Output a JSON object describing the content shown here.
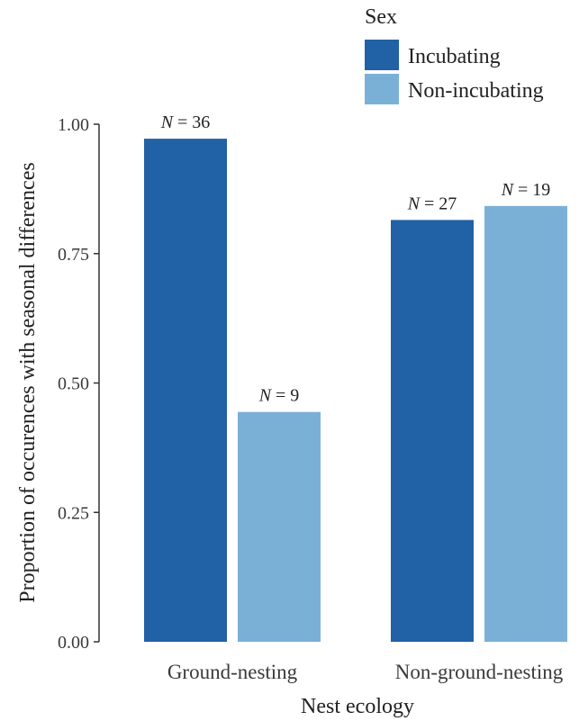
{
  "chart_data": {
    "type": "bar",
    "xlabel": "Nest ecology",
    "ylabel": "Proportion of occurences with seasonal differences",
    "ylim": [
      0,
      1
    ],
    "yticks": [
      "0.00",
      "0.25",
      "0.50",
      "0.75",
      "1.00"
    ],
    "yticks_values": [
      0,
      0.25,
      0.5,
      0.75,
      1.0
    ],
    "categories": [
      "Ground-nesting",
      "Non-ground-nesting"
    ],
    "legend": {
      "title": "Sex",
      "placement": "top-right"
    },
    "series": [
      {
        "name": "Incubating",
        "color": "#2161a5",
        "values": [
          0.972,
          0.815
        ],
        "n_labels": [
          "36",
          "27"
        ]
      },
      {
        "name": "Non-incubating",
        "color": "#7bb0d6",
        "values": [
          0.444,
          0.842
        ],
        "n_labels": [
          "9",
          "19"
        ]
      }
    ],
    "n_prefix": "N",
    "n_eq": " = "
  }
}
